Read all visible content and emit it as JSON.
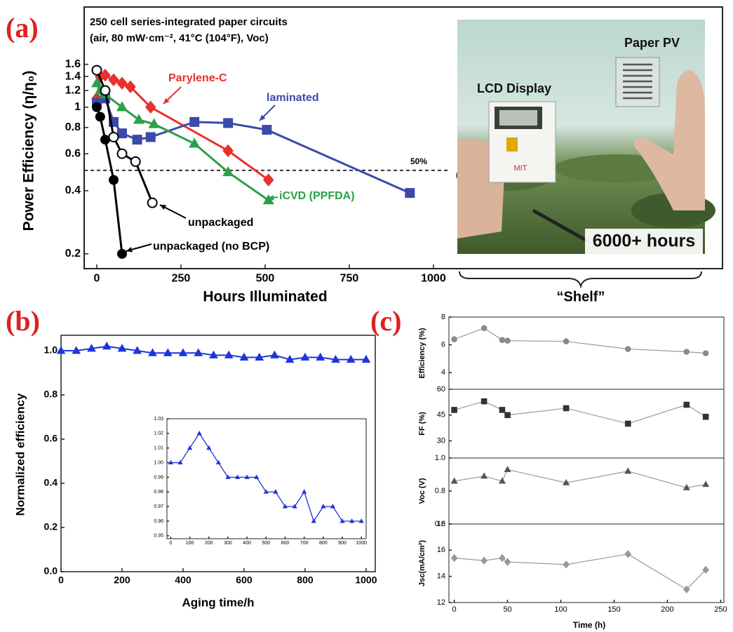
{
  "panel_labels": [
    "(a)",
    "(b)",
    "(c)"
  ],
  "photo": {
    "labels": [
      "LCD Display",
      "Paper PV",
      "6000+ hours",
      "MIT"
    ],
    "caption": "“Shelf”"
  },
  "chart_data": [
    {
      "type": "line",
      "log_y": true,
      "title": "250 cell series-integrated paper circuits",
      "subtitle": "(air, 80 mW·cm⁻², 41°C (104°F), Voc)",
      "xlabel": "Hours Illuminated",
      "ylabel": "Power Efficiency (η/η₀)",
      "xlim": [
        -37.5,
        1046
      ],
      "ylim": [
        0.17,
        3.0
      ],
      "xticks": [
        0,
        250,
        500,
        750,
        1000
      ],
      "yticks": [
        0.2,
        0.4,
        0.6,
        0.8,
        1,
        1.2,
        1.4,
        1.6
      ],
      "reference_line": {
        "value": 0.5,
        "label": "50%"
      },
      "series": [
        {
          "name": "Parylene-C",
          "color": "#e8302c",
          "marker": "diamond",
          "hollow": false,
          "x": [
            0,
            10,
            25,
            50,
            75,
            100,
            160,
            390,
            510
          ],
          "values": [
            1.1,
            1.4,
            1.42,
            1.35,
            1.3,
            1.25,
            1.0,
            0.62,
            0.45
          ]
        },
        {
          "name": "laminated",
          "color": "#3a4aa8",
          "marker": "square",
          "hollow": false,
          "x": [
            0,
            25,
            50,
            75,
            120,
            160,
            290,
            390,
            505,
            930
          ],
          "values": [
            1.05,
            1.1,
            0.85,
            0.75,
            0.7,
            0.72,
            0.85,
            0.84,
            0.78,
            0.39
          ]
        },
        {
          "name": "iCVD (PPFDA)",
          "color": "#2aa04a",
          "marker": "triangle",
          "hollow": false,
          "x": [
            0,
            10,
            25,
            75,
            125,
            170,
            290,
            390,
            510
          ],
          "values": [
            1.3,
            1.2,
            1.15,
            1.0,
            0.87,
            0.83,
            0.67,
            0.49,
            0.36
          ]
        },
        {
          "name": "unpackaged",
          "color": "#000000",
          "marker": "circle",
          "hollow": true,
          "x": [
            0,
            25,
            50,
            75,
            115,
            165
          ],
          "values": [
            1.5,
            1.2,
            0.72,
            0.6,
            0.55,
            0.35
          ]
        },
        {
          "name": "unpackaged (no BCP)",
          "color": "#000000",
          "marker": "circle",
          "hollow": false,
          "x": [
            0,
            10,
            25,
            50,
            75
          ],
          "values": [
            1.0,
            0.9,
            0.7,
            0.45,
            0.2
          ]
        }
      ]
    },
    {
      "type": "line",
      "xlabel": "Aging time/h",
      "ylabel": "Normalized efficiency",
      "xlim": [
        0,
        1030
      ],
      "ylim": [
        0,
        1.07
      ],
      "xticks": [
        0,
        200,
        400,
        600,
        800,
        1000
      ],
      "yticks": [
        {
          "value": 0,
          "label": "0.0"
        },
        0.2,
        0.4,
        0.6,
        0.8,
        {
          "value": 1,
          "label": "1.0"
        }
      ],
      "series": [
        {
          "color": "#1f35d8",
          "marker": "triangle",
          "hollow": false,
          "x": [
            0,
            50,
            100,
            150,
            200,
            250,
            300,
            350,
            400,
            450,
            500,
            550,
            600,
            650,
            700,
            750,
            800,
            850,
            900,
            950,
            1000
          ],
          "values": [
            1.0,
            1.0,
            1.01,
            1.02,
            1.01,
            1.0,
            0.99,
            0.99,
            0.99,
            0.99,
            0.98,
            0.98,
            0.97,
            0.97,
            0.98,
            0.96,
            0.97,
            0.97,
            0.96,
            0.96,
            0.96
          ]
        }
      ],
      "inset": {
        "xlim": [
          -20,
          1025
        ],
        "ylim": [
          0.948,
          1.03
        ],
        "xticks": [
          0,
          100,
          200,
          300,
          400,
          500,
          600,
          700,
          800,
          900,
          1000
        ],
        "yticks": [
          0.95,
          0.96,
          0.97,
          0.98,
          0.99,
          {
            "value": 1,
            "label": "1.00"
          },
          1.01,
          1.02,
          1.03
        ]
      }
    },
    {
      "type": "stacked",
      "xlabel": "Time (h)",
      "x": [
        0,
        28,
        45,
        50,
        105,
        163,
        218,
        236
      ],
      "xlim": [
        -5,
        253
      ],
      "xticks": [
        0,
        50,
        100,
        150,
        200,
        250
      ],
      "panels": [
        {
          "ylabel": "Efficiency (%)",
          "ylim": [
            2.8,
            8
          ],
          "yticks": [
            4,
            6,
            8
          ],
          "color": "#8a8a8a",
          "marker": "circle",
          "values": [
            6.4,
            7.2,
            6.35,
            6.3,
            6.25,
            5.7,
            5.5,
            5.4
          ]
        },
        {
          "ylabel": "FF (%)",
          "ylim": [
            20,
            60
          ],
          "yticks": [
            30,
            45,
            60
          ],
          "color": "#333333",
          "marker": "square",
          "values": [
            48,
            53,
            48,
            45,
            49,
            40,
            51,
            44
          ]
        },
        {
          "ylabel": "Voc (V)",
          "ylim": [
            0.6,
            1.0
          ],
          "yticks": [
            0.6,
            0.8,
            {
              "value": 1,
              "label": "1.0"
            }
          ],
          "color": "#555555",
          "marker": "triangle",
          "values": [
            0.86,
            0.89,
            0.86,
            0.93,
            0.85,
            0.92,
            0.82,
            0.84
          ]
        },
        {
          "ylabel": "Jsc(mA/cm²)",
          "ylim": [
            12,
            18
          ],
          "yticks": [
            12,
            14,
            16,
            18
          ],
          "color": "#999999",
          "marker": "diamond",
          "values": [
            15.4,
            15.2,
            15.4,
            15.1,
            14.9,
            15.7,
            13.0,
            14.5
          ]
        }
      ]
    }
  ]
}
